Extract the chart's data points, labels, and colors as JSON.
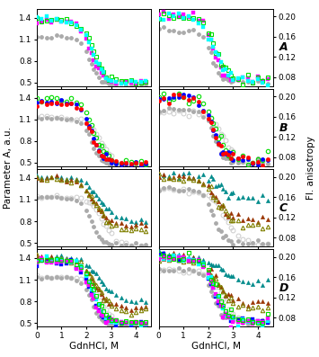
{
  "xlabel": "GdnHCl, M",
  "ylabel_left": "Parameter A, a.u.",
  "ylabel_right": "Fl. anisotropy",
  "xlim": [
    0,
    4.6
  ],
  "ylim_left": [
    0.45,
    1.52
  ],
  "ylim_right": [
    0.062,
    0.215
  ],
  "xticks": [
    0,
    1,
    2,
    3,
    4
  ],
  "yticks_left": [
    0.5,
    0.8,
    1.1,
    1.4
  ],
  "yticks_right": [
    0.08,
    0.12,
    0.16,
    0.2
  ],
  "row_labels": [
    "A",
    "B",
    "C",
    "D"
  ],
  "gray_filled_color": "#aaaaaa",
  "gray_open_color": "#cccccc",
  "magenta": "#ff00ff",
  "green": "#00dd00",
  "cyan": "#00ffff",
  "blue": "#0000ff",
  "red": "#ff0000",
  "teal": "#008b8b",
  "darkred": "#993300",
  "olive": "#808000"
}
